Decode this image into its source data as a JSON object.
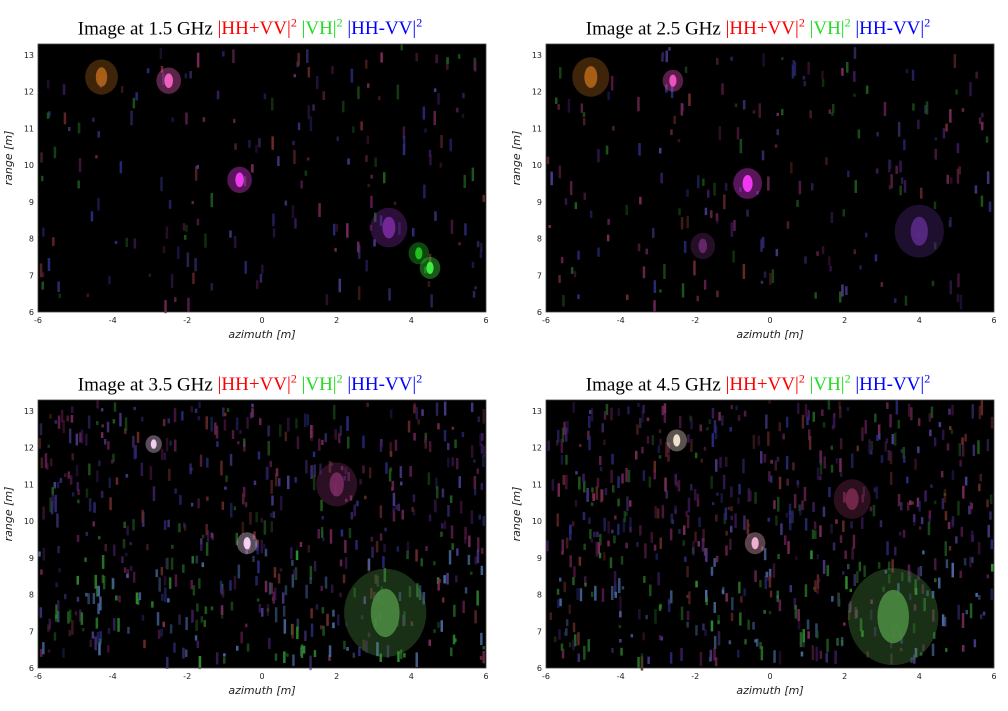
{
  "panels": [
    {
      "freq": "Image at 1.5 GHz",
      "title_prefix": "Image at 1.5 GHz ",
      "legend": [
        "|HH+VV|",
        "|VH|",
        "|HH-VV|"
      ],
      "exponent": "2",
      "noise": 0.08,
      "blobs": [
        {
          "x": -0.6,
          "y": 9.6,
          "r": 0.6,
          "color": "#ff3cff"
        },
        {
          "x": -2.5,
          "y": 12.3,
          "r": 0.6,
          "color": "#ff66cc"
        },
        {
          "x": -4.3,
          "y": 12.4,
          "r": 0.8,
          "color": "#b3661a"
        },
        {
          "x": 3.4,
          "y": 8.3,
          "r": 0.9,
          "color": "#7a2aa0"
        },
        {
          "x": 4.5,
          "y": 7.2,
          "r": 0.5,
          "color": "#44ff44"
        },
        {
          "x": 4.2,
          "y": 7.6,
          "r": 0.5,
          "color": "#22cc22"
        }
      ]
    },
    {
      "freq": "Image at 2.5 GHz",
      "title_prefix": "Image at 2.5 GHz ",
      "legend": [
        "|HH+VV|",
        "|VH|",
        "|HH-VV|"
      ],
      "exponent": "2",
      "noise": 0.1,
      "blobs": [
        {
          "x": -0.6,
          "y": 9.5,
          "r": 0.7,
          "color": "#ff3cff"
        },
        {
          "x": -2.6,
          "y": 12.3,
          "r": 0.5,
          "color": "#ff55cc"
        },
        {
          "x": -4.8,
          "y": 12.4,
          "r": 0.9,
          "color": "#b3661a"
        },
        {
          "x": 4.0,
          "y": 8.2,
          "r": 1.2,
          "color": "#5a2a88"
        },
        {
          "x": -1.8,
          "y": 7.8,
          "r": 0.6,
          "color": "#6a2a70"
        }
      ]
    },
    {
      "freq": "Image at 3.5 GHz",
      "title_prefix": "Image at 3.5 GHz ",
      "legend": [
        "|HH+VV|",
        "|VH|",
        "|HH-VV|"
      ],
      "exponent": "2",
      "noise": 0.55,
      "blobs": [
        {
          "x": -0.4,
          "y": 9.4,
          "r": 0.5,
          "color": "#ffddff"
        },
        {
          "x": -2.9,
          "y": 12.1,
          "r": 0.4,
          "color": "#ffddff"
        },
        {
          "x": 3.3,
          "y": 7.5,
          "r": 2.0,
          "color": "#4a8a40"
        },
        {
          "x": 2.0,
          "y": 11.0,
          "r": 1.0,
          "color": "#7a2a60"
        }
      ]
    },
    {
      "freq": "Image at 4.5 GHz",
      "title_prefix": "Image at 4.5 GHz ",
      "legend": [
        "|HH+VV|",
        "|VH|",
        "|HH-VV|"
      ],
      "exponent": "2",
      "noise": 0.6,
      "blobs": [
        {
          "x": -0.4,
          "y": 9.4,
          "r": 0.5,
          "color": "#ffbbdd"
        },
        {
          "x": -2.5,
          "y": 12.2,
          "r": 0.5,
          "color": "#ffeedd"
        },
        {
          "x": 3.3,
          "y": 7.4,
          "r": 2.2,
          "color": "#4a8a40"
        },
        {
          "x": 2.2,
          "y": 10.6,
          "r": 0.9,
          "color": "#7a2a50"
        }
      ]
    }
  ],
  "axes": {
    "xlabel": "azimuth [m]",
    "ylabel": "range [m]",
    "xlim": [
      -6,
      6
    ],
    "ylim": [
      6,
      13.3
    ],
    "xticks": [
      "-6",
      "-4",
      "-2",
      "0",
      "2",
      "4",
      "6"
    ],
    "yticks": [
      "6",
      "7",
      "8",
      "9",
      "10",
      "11",
      "12",
      "13"
    ]
  },
  "colors": {
    "hh_plus_vv": "#ff0000",
    "vh": "#22dd22",
    "hh_minus_vv": "#0000ff",
    "background": "#000000"
  }
}
